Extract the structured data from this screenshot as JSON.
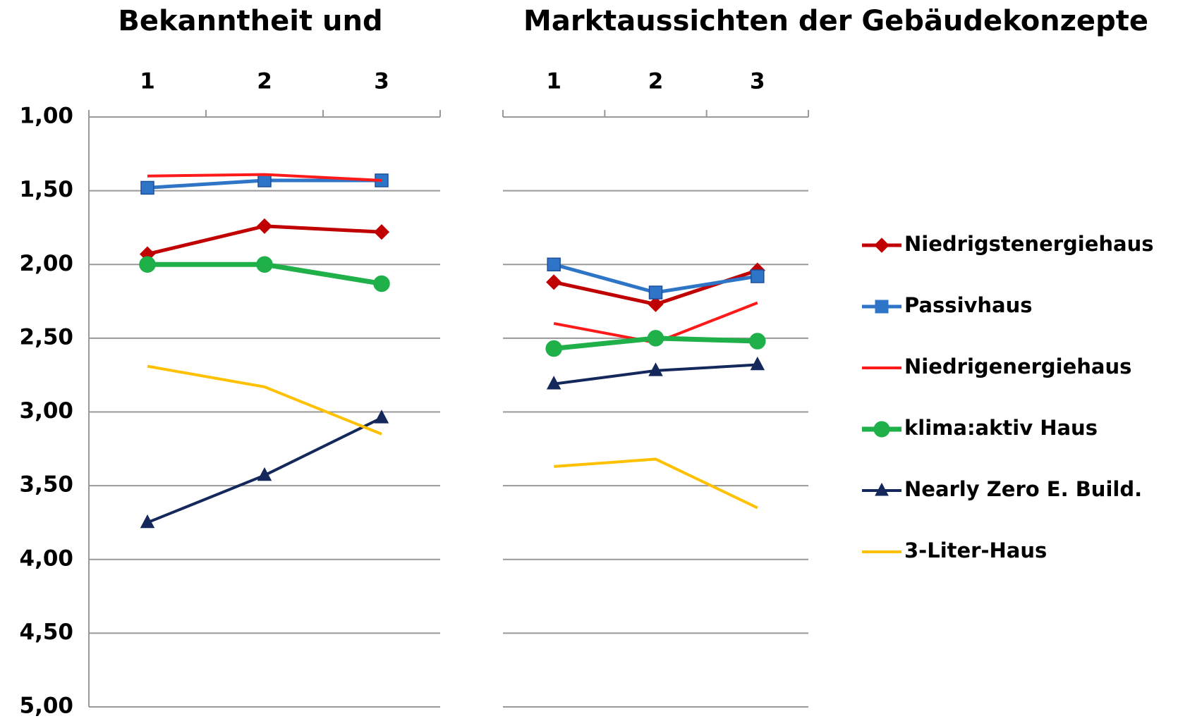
{
  "chart_data": [
    {
      "type": "line",
      "title": "Bekanntheit und",
      "categories": [
        "1",
        "2",
        "3"
      ],
      "ylim": [
        1,
        5
      ],
      "y_inverted": true,
      "grid": true,
      "yticks": [
        {
          "value": 1,
          "label": "1,00"
        },
        {
          "value": 1.5,
          "label": "1,50"
        },
        {
          "value": 2,
          "label": "2,00"
        },
        {
          "value": 2.5,
          "label": "2,50"
        },
        {
          "value": 3,
          "label": "3,00"
        },
        {
          "value": 3.5,
          "label": "3,50"
        },
        {
          "value": 4,
          "label": "4,00"
        },
        {
          "value": 4.5,
          "label": "4,50"
        },
        {
          "value": 5,
          "label": "5,00"
        }
      ],
      "series": [
        {
          "name": "Niedrigstenergiehaus",
          "color": "#c00000",
          "marker": "diamond",
          "values": [
            1.93,
            1.74,
            1.78
          ]
        },
        {
          "name": "Passivhaus",
          "color": "#2e75c8",
          "marker": "square",
          "values": [
            1.48,
            1.43,
            1.43
          ]
        },
        {
          "name": "Niedrigenergiehaus",
          "color": "#ff1a1a",
          "marker": "none",
          "values": [
            1.4,
            1.39,
            1.43
          ]
        },
        {
          "name": "klima:aktiv Haus",
          "color": "#1fb04a",
          "marker": "circle",
          "values": [
            2.0,
            2.0,
            2.13
          ]
        },
        {
          "name": "Nearly Zero E. Build.",
          "color": "#14285c",
          "marker": "triangle",
          "values": [
            3.75,
            3.43,
            3.04
          ]
        },
        {
          "name": "3-Liter-Haus",
          "color": "#ffc000",
          "marker": "none",
          "values": [
            2.69,
            2.83,
            3.15
          ]
        }
      ]
    },
    {
      "type": "line",
      "title": "Marktaussichten der Gebäudekonzepte",
      "categories": [
        "1",
        "2",
        "3"
      ],
      "ylim": [
        1,
        5
      ],
      "y_inverted": true,
      "grid": true,
      "yticks": [
        1,
        1.5,
        2,
        2.5,
        3,
        3.5,
        4,
        4.5,
        5
      ],
      "series": [
        {
          "color": "#c00000",
          "marker": "diamond",
          "values": [
            2.12,
            2.27,
            2.04
          ]
        },
        {
          "color": "#2e75c8",
          "marker": "square",
          "values": [
            2.0,
            2.19,
            2.08
          ]
        },
        {
          "color": "#ff1a1a",
          "marker": "none",
          "values": [
            2.4,
            2.53,
            2.26
          ]
        },
        {
          "color": "#1fb04a",
          "marker": "circle",
          "values": [
            2.57,
            2.5,
            2.52
          ]
        },
        {
          "color": "#14285c",
          "marker": "triangle",
          "values": [
            2.81,
            2.72,
            2.68
          ]
        },
        {
          "color": "#ffc000",
          "marker": "none",
          "values": [
            3.37,
            3.32,
            3.65
          ]
        }
      ]
    }
  ]
}
